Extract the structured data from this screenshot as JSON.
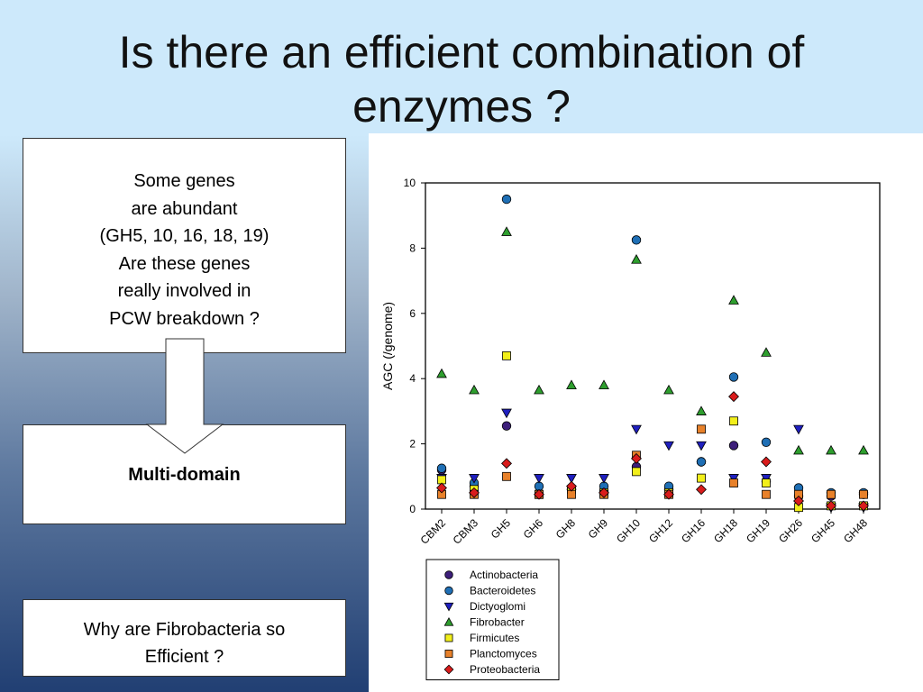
{
  "slide": {
    "title_line1": "Is there an efficient combination of",
    "title_line2": "enzymes ?"
  },
  "box_top": {
    "lines": [
      "Some genes",
      "are abundant",
      "(GH5, 10, 16, 18, 19)",
      "Are these genes",
      "really involved in",
      "PCW breakdown ?"
    ]
  },
  "box_middle": {
    "label": "Multi-domain"
  },
  "box_bottom": {
    "lines": [
      "Why are Fibrobacteria so",
      "Efficient ?"
    ]
  },
  "chart_data": {
    "type": "scatter",
    "title": "",
    "xlabel": "",
    "ylabel": "AGC (/genome)",
    "ylim": [
      0,
      10
    ],
    "yticks": [
      0,
      2,
      4,
      6,
      8,
      10
    ],
    "categories": [
      "CBM2",
      "CBM3",
      "GH5",
      "GH6",
      "GH8",
      "GH9",
      "GH10",
      "GH12",
      "GH16",
      "GH18",
      "GH19",
      "GH26",
      "GH45",
      "GH48"
    ],
    "legend_position": "bottom",
    "grid": false,
    "series": [
      {
        "name": "Actinobacteria",
        "marker": "circle",
        "color": "#3d1f7a",
        "values": [
          1.2,
          0.7,
          2.55,
          0.45,
          0.6,
          0.55,
          1.3,
          0.6,
          1.45,
          1.95,
          0.85,
          0.4,
          0.4,
          0.45
        ]
      },
      {
        "name": "Bacteroidetes",
        "marker": "circle",
        "color": "#1f6fb5",
        "values": [
          1.25,
          0.8,
          9.5,
          0.7,
          0.6,
          0.7,
          8.25,
          0.7,
          1.45,
          4.05,
          2.05,
          0.65,
          0.5,
          0.5
        ]
      },
      {
        "name": "Dictyoglomi",
        "marker": "triangle-down",
        "color": "#1f1fbf",
        "values": [
          0.95,
          0.95,
          2.95,
          0.95,
          0.95,
          0.95,
          2.45,
          1.95,
          1.95,
          0.95,
          0.95,
          2.45,
          0.05,
          0.05
        ]
      },
      {
        "name": "Fibrobacter",
        "marker": "triangle-up",
        "color": "#2e9e2e",
        "values": [
          4.15,
          3.65,
          8.5,
          3.65,
          3.8,
          3.8,
          7.65,
          3.65,
          3.0,
          6.4,
          4.8,
          1.8,
          1.8,
          1.8
        ]
      },
      {
        "name": "Firmicutes",
        "marker": "square",
        "color": "#f2ef1a",
        "values": [
          0.9,
          0.6,
          4.7,
          0.45,
          0.6,
          0.5,
          1.15,
          0.5,
          0.95,
          2.7,
          0.8,
          0.05,
          0.1,
          0.1
        ]
      },
      {
        "name": "Planctomyces",
        "marker": "square",
        "color": "#e8812a",
        "values": [
          0.45,
          0.45,
          1.0,
          0.45,
          0.45,
          0.45,
          1.65,
          0.45,
          2.45,
          0.8,
          0.45,
          0.45,
          0.45,
          0.45
        ]
      },
      {
        "name": "Proteobacteria",
        "marker": "diamond",
        "color": "#d91c1c",
        "values": [
          0.65,
          0.5,
          1.4,
          0.45,
          0.7,
          0.5,
          1.55,
          0.45,
          0.6,
          3.45,
          1.45,
          0.25,
          0.1,
          0.1
        ]
      }
    ]
  }
}
